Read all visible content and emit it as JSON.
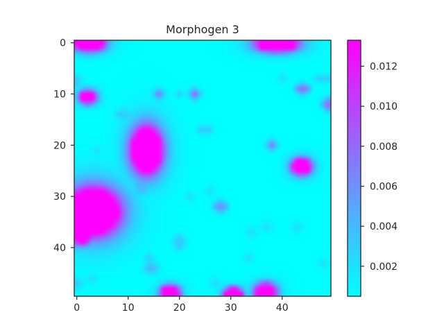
{
  "chart_data": {
    "type": "heatmap",
    "title": "Morphogen 3",
    "grid_size": [
      50,
      50
    ],
    "colormap": "cool",
    "colormap_endpoints": [
      "#00ffff",
      "#ff00ff"
    ],
    "grid": false,
    "x": {
      "range": [
        0,
        49
      ],
      "ticks": [
        0,
        10,
        20,
        30,
        40
      ],
      "tick_labels": [
        "0",
        "10",
        "20",
        "30",
        "40"
      ]
    },
    "y": {
      "range": [
        0,
        49
      ],
      "inverted": true,
      "ticks": [
        0,
        10,
        20,
        30,
        40
      ],
      "tick_labels": [
        "0",
        "10",
        "20",
        "30",
        "40"
      ]
    },
    "colorbar": {
      "min": 0.0005,
      "max": 0.0133,
      "ticks": [
        0.002,
        0.004,
        0.006,
        0.008,
        0.01,
        0.012
      ],
      "tick_labels": [
        "0.002",
        "0.004",
        "0.006",
        "0.008",
        "0.010",
        "0.012"
      ]
    },
    "baseline_value": 0.0005,
    "blobs": [
      {
        "x": 2.5,
        "y": 0.2,
        "rx": 2.6,
        "ry": 1.3,
        "value": 0.0133
      },
      {
        "x": 39.0,
        "y": 0.3,
        "rx": 3.6,
        "ry": 1.3,
        "value": 0.0133
      },
      {
        "x": 2.2,
        "y": 10.6,
        "rx": 1.4,
        "ry": 1.1,
        "value": 0.0133
      },
      {
        "x": 13.6,
        "y": 21.0,
        "rx": 2.8,
        "ry": 4.2,
        "value": 0.0133
      },
      {
        "x": 43.8,
        "y": 24.2,
        "rx": 1.7,
        "ry": 1.4,
        "value": 0.0133
      },
      {
        "x": 3.2,
        "y": 33.0,
        "rx": 4.8,
        "ry": 4.3,
        "value": 0.0133
      },
      {
        "x": 1.0,
        "y": 37.0,
        "rx": 2.0,
        "ry": 2.0,
        "value": 0.0133
      },
      {
        "x": 18.2,
        "y": 48.8,
        "rx": 1.6,
        "ry": 1.2,
        "value": 0.0133
      },
      {
        "x": 30.5,
        "y": 49.0,
        "rx": 1.5,
        "ry": 1.0,
        "value": 0.0133
      },
      {
        "x": 36.8,
        "y": 48.6,
        "rx": 1.8,
        "ry": 1.4,
        "value": 0.0133
      },
      {
        "x": 16.0,
        "y": 10.0,
        "rx": 0.7,
        "ry": 0.7,
        "value": 0.007
      },
      {
        "x": 23.0,
        "y": 10.0,
        "rx": 0.7,
        "ry": 0.7,
        "value": 0.008
      },
      {
        "x": 20.0,
        "y": 10.0,
        "rx": 0.6,
        "ry": 0.6,
        "value": 0.003
      },
      {
        "x": 44.0,
        "y": 9.0,
        "rx": 0.9,
        "ry": 0.7,
        "value": 0.008
      },
      {
        "x": 49.0,
        "y": 12.0,
        "rx": 0.8,
        "ry": 0.8,
        "value": 0.008
      },
      {
        "x": 48.0,
        "y": 7.0,
        "rx": 1.2,
        "ry": 0.6,
        "value": 0.003
      },
      {
        "x": 0.0,
        "y": 7.5,
        "rx": 0.8,
        "ry": 0.8,
        "value": 0.003
      },
      {
        "x": 38.0,
        "y": 20.0,
        "rx": 0.7,
        "ry": 0.7,
        "value": 0.007
      },
      {
        "x": 28.0,
        "y": 32.0,
        "rx": 0.9,
        "ry": 0.8,
        "value": 0.006
      },
      {
        "x": 12.8,
        "y": 28.2,
        "rx": 1.0,
        "ry": 1.0,
        "value": 0.004
      },
      {
        "x": 9.0,
        "y": 14.0,
        "rx": 1.2,
        "ry": 0.8,
        "value": 0.003
      },
      {
        "x": 25.0,
        "y": 17.0,
        "rx": 1.0,
        "ry": 0.7,
        "value": 0.003
      },
      {
        "x": 20.0,
        "y": 39.0,
        "rx": 0.9,
        "ry": 1.1,
        "value": 0.003
      },
      {
        "x": 14.5,
        "y": 44.0,
        "rx": 1.1,
        "ry": 0.8,
        "value": 0.004
      },
      {
        "x": 14.0,
        "y": 42.0,
        "rx": 0.7,
        "ry": 0.7,
        "value": 0.003
      },
      {
        "x": 22.0,
        "y": 30.0,
        "rx": 0.7,
        "ry": 0.7,
        "value": 0.002
      },
      {
        "x": 26.0,
        "y": 29.0,
        "rx": 0.7,
        "ry": 0.7,
        "value": 0.002
      },
      {
        "x": 37.0,
        "y": 36.0,
        "rx": 0.8,
        "ry": 0.8,
        "value": 0.002
      },
      {
        "x": 34.0,
        "y": 37.0,
        "rx": 0.8,
        "ry": 0.8,
        "value": 0.002
      },
      {
        "x": 43.0,
        "y": 36.0,
        "rx": 0.8,
        "ry": 0.8,
        "value": 0.002
      },
      {
        "x": 33.5,
        "y": 42.0,
        "rx": 0.7,
        "ry": 0.7,
        "value": 0.002
      },
      {
        "x": 0.0,
        "y": 47.0,
        "rx": 0.8,
        "ry": 0.8,
        "value": 0.003
      },
      {
        "x": 3.0,
        "y": 46.0,
        "rx": 0.8,
        "ry": 0.8,
        "value": 0.002
      },
      {
        "x": 40.0,
        "y": 7.0,
        "rx": 0.7,
        "ry": 0.7,
        "value": 0.002
      },
      {
        "x": 27.0,
        "y": 47.0,
        "rx": 0.8,
        "ry": 0.8,
        "value": 0.002
      },
      {
        "x": 48.0,
        "y": 43.0,
        "rx": 0.7,
        "ry": 0.7,
        "value": 0.002
      },
      {
        "x": 4.0,
        "y": 21.0,
        "rx": 0.7,
        "ry": 0.7,
        "value": 0.002
      }
    ]
  }
}
